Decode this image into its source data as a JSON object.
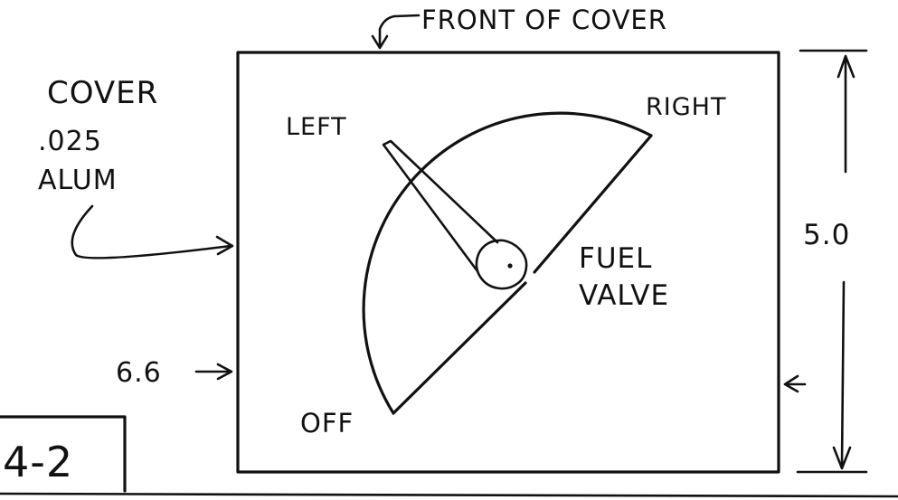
{
  "labels": {
    "front_of_cover": "FRONT OF COVER",
    "cover_line1": "COVER",
    "cover_line2": ".025",
    "cover_line3": "ALUM",
    "left": "LEFT",
    "right": "RIGHT",
    "off": "OFF",
    "fuel_line1": "FUEL",
    "fuel_line2": "VALVE",
    "height_dim": "5.0",
    "width_dim": "6.6",
    "figure_number": "4-2"
  },
  "colors": {
    "ink": "#111111",
    "paper": "#ffffff"
  }
}
